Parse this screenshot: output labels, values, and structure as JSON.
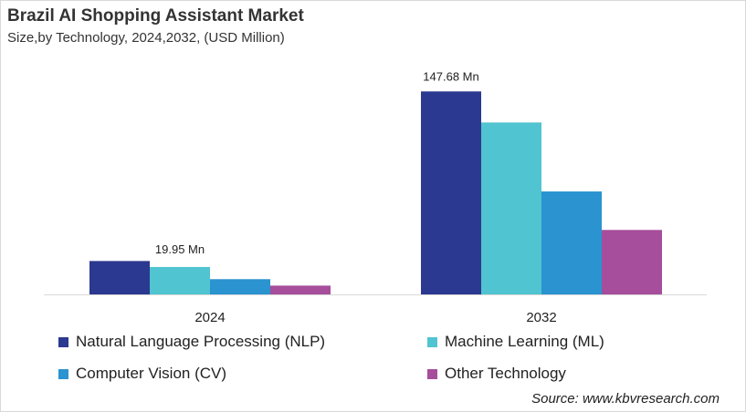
{
  "chart_data": {
    "type": "bar",
    "title": "Brazil AI Shopping Assistant Market",
    "subtitle": "Size,by Technology, 2024,2032, (USD Million)",
    "categories": [
      "2024",
      "2032"
    ],
    "series": [
      {
        "name": "Natural Language Processing (NLP)",
        "color": "#2b3990",
        "values": [
          24.3,
          147.68
        ]
      },
      {
        "name": "Machine Learning (ML)",
        "color": "#50c4d0",
        "values": [
          19.95,
          125.1
        ]
      },
      {
        "name": "Computer Vision (CV)",
        "color": "#2a93d0",
        "values": [
          11.1,
          74.9
        ]
      },
      {
        "name": "Other Technology",
        "color": "#a64d9b",
        "values": [
          6.4,
          46.9
        ]
      }
    ],
    "data_labels": [
      {
        "category": "2024",
        "series": "Machine Learning (ML)",
        "text": "19.95  Mn"
      },
      {
        "category": "2032",
        "series": "Natural Language Processing (NLP)",
        "text": "147.68  Mn"
      }
    ],
    "ylim": [
      0,
      160
    ],
    "grid": false,
    "legend_placement": "bottom"
  },
  "source": "Source: www.kbvresearch.com"
}
